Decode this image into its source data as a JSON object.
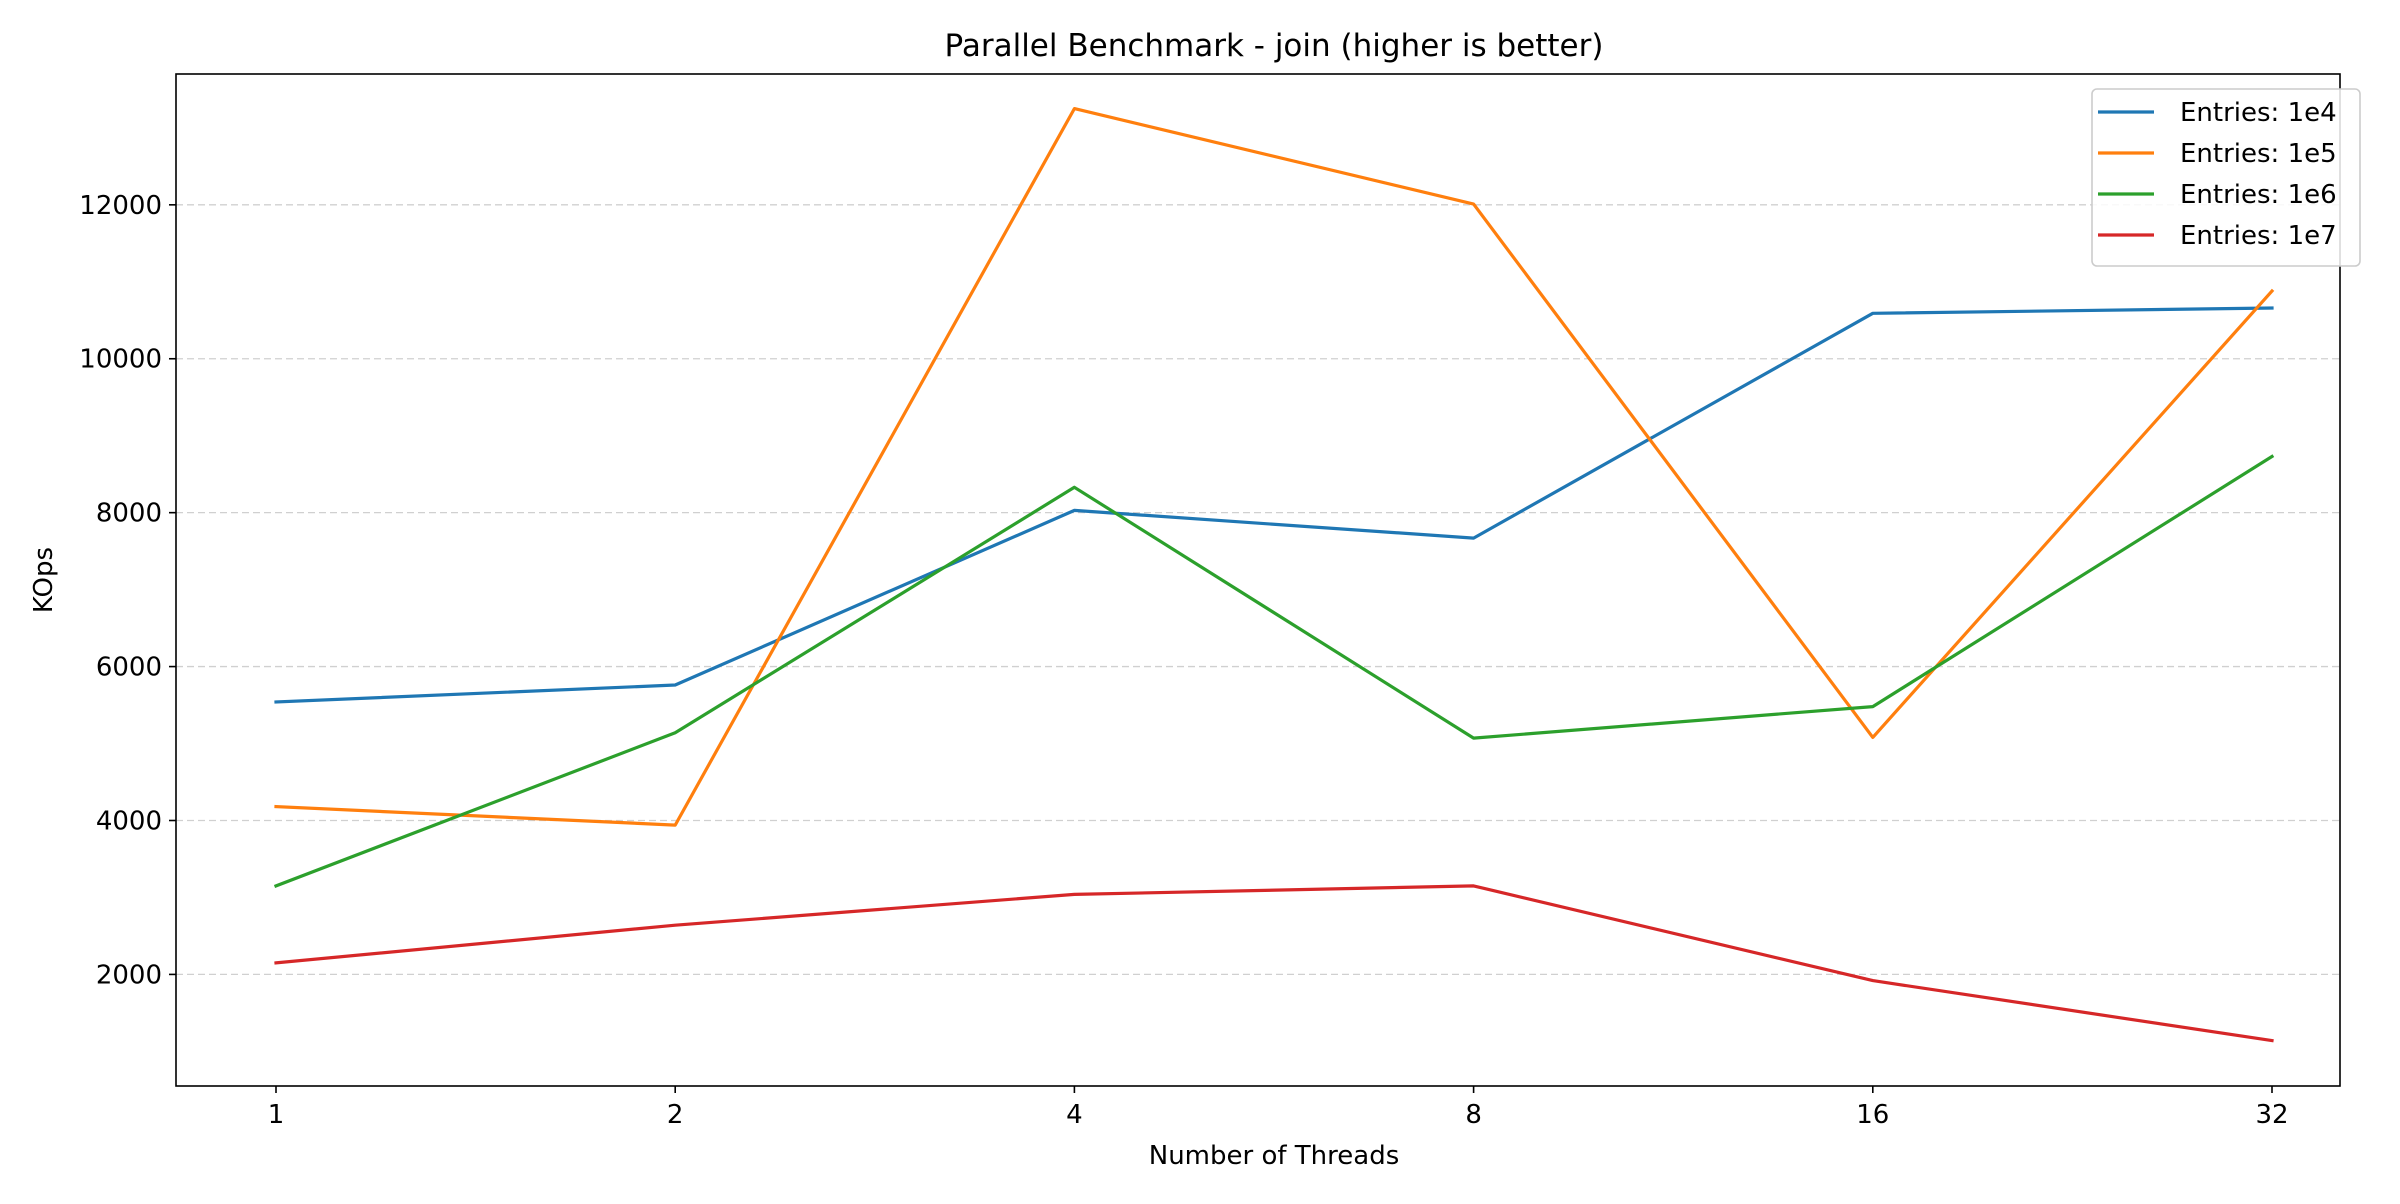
{
  "chart_data": {
    "type": "line",
    "title": "Parallel Benchmark - join (higher is better)",
    "xlabel": "Number of Threads",
    "ylabel": "KOps",
    "categories": [
      "1",
      "2",
      "4",
      "8",
      "16",
      "32"
    ],
    "x_scale": "log2",
    "ylim": [
      550,
      13700
    ],
    "yticks": [
      2000,
      4000,
      6000,
      8000,
      10000,
      12000
    ],
    "grid": "y-dashed",
    "legend_position": "top-right",
    "series": [
      {
        "name": "Entries: 1e4",
        "color": "#1f77b4",
        "values": [
          5540,
          5760,
          8030,
          7670,
          10590,
          10660
        ]
      },
      {
        "name": "Entries: 1e5",
        "color": "#ff7f0e",
        "values": [
          4180,
          3940,
          13250,
          12010,
          5080,
          10880
        ]
      },
      {
        "name": "Entries: 1e6",
        "color": "#2ca02c",
        "values": [
          3150,
          5140,
          8330,
          5070,
          5480,
          8730
        ]
      },
      {
        "name": "Entries: 1e7",
        "color": "#d62728",
        "values": [
          2150,
          2640,
          3040,
          3150,
          1920,
          1140
        ]
      }
    ]
  }
}
